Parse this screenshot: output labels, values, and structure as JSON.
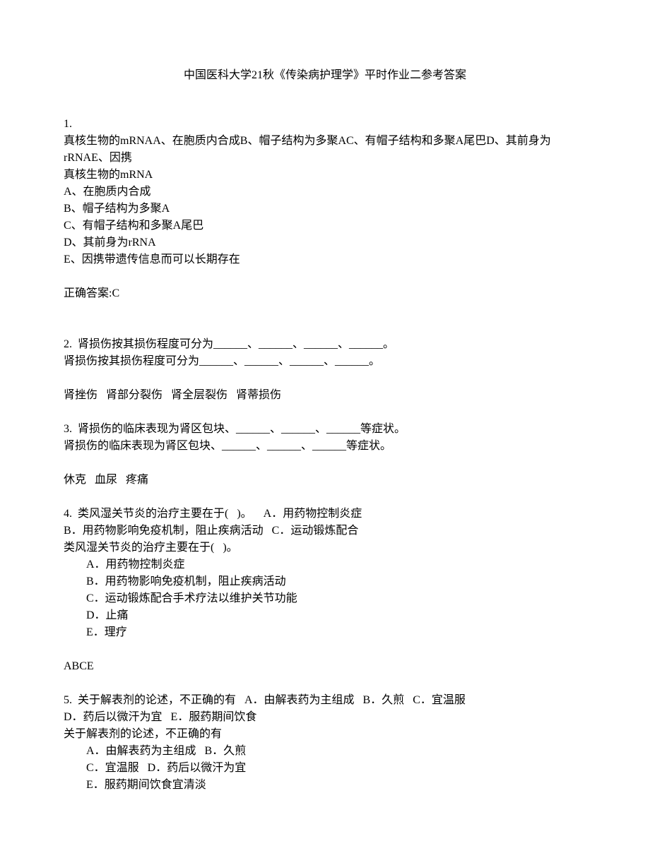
{
  "title": "中国医科大学21秋《传染病护理学》平时作业二参考答案",
  "q1": {
    "num": "1.",
    "stem1": "真核生物的mRNAA、在胞质内合成B、帽子结构为多聚AC、有帽子结构和多聚A尾巴D、其前身为rRNAE、因携",
    "stem2": "真核生物的mRNA",
    "optA": "A、在胞质内合成",
    "optB": "B、帽子结构为多聚A",
    "optC": "C、有帽子结构和多聚A尾巴",
    "optD": "D、其前身为rRNA",
    "optE": "E、因携带遗传信息而可以长期存在",
    "answer": "正确答案:C"
  },
  "q2": {
    "line1": "2.  肾损伤按其损伤程度可分为______、______、______、______。",
    "line2": "肾损伤按其损伤程度可分为______、______、______、______。",
    "answer": "肾挫伤   肾部分裂伤   肾全层裂伤   肾蒂损伤"
  },
  "q3": {
    "line1": "3.  肾损伤的临床表现为肾区包块、______、______、______等症状。",
    "line2": "肾损伤的临床表现为肾区包块、______、______、______等症状。",
    "answer": "休克   血尿   疼痛"
  },
  "q4": {
    "line1": "4.  类风湿关节炎的治疗主要在于(   )。    A．用药物控制炎症",
    "line2": "B．用药物影响免疫机制，阻止疾病活动   C．运动锻炼配合",
    "line3": "类风湿关节炎的治疗主要在于(   )。",
    "optA": "A．用药物控制炎症",
    "optB": "B．用药物影响免疫机制，阻止疾病活动",
    "optC": "C．运动锻炼配合手术疗法以维护关节功能",
    "optD": "D．止痛",
    "optE": "E．理疗",
    "answer": "ABCE"
  },
  "q5": {
    "line1": "5.  关于解表剂的论述，不正确的有   A．由解表药为主组成   B．久煎   C．宜温服",
    "line2": "D．药后以微汗为宜   E．服药期间饮食",
    "line3": "关于解表剂的论述，不正确的有",
    "optA": "A．由解表药为主组成   B．久煎",
    "optB": "C．宜温服   D．药后以微汗为宜",
    "optC": "E．服药期间饮食宜清淡"
  }
}
